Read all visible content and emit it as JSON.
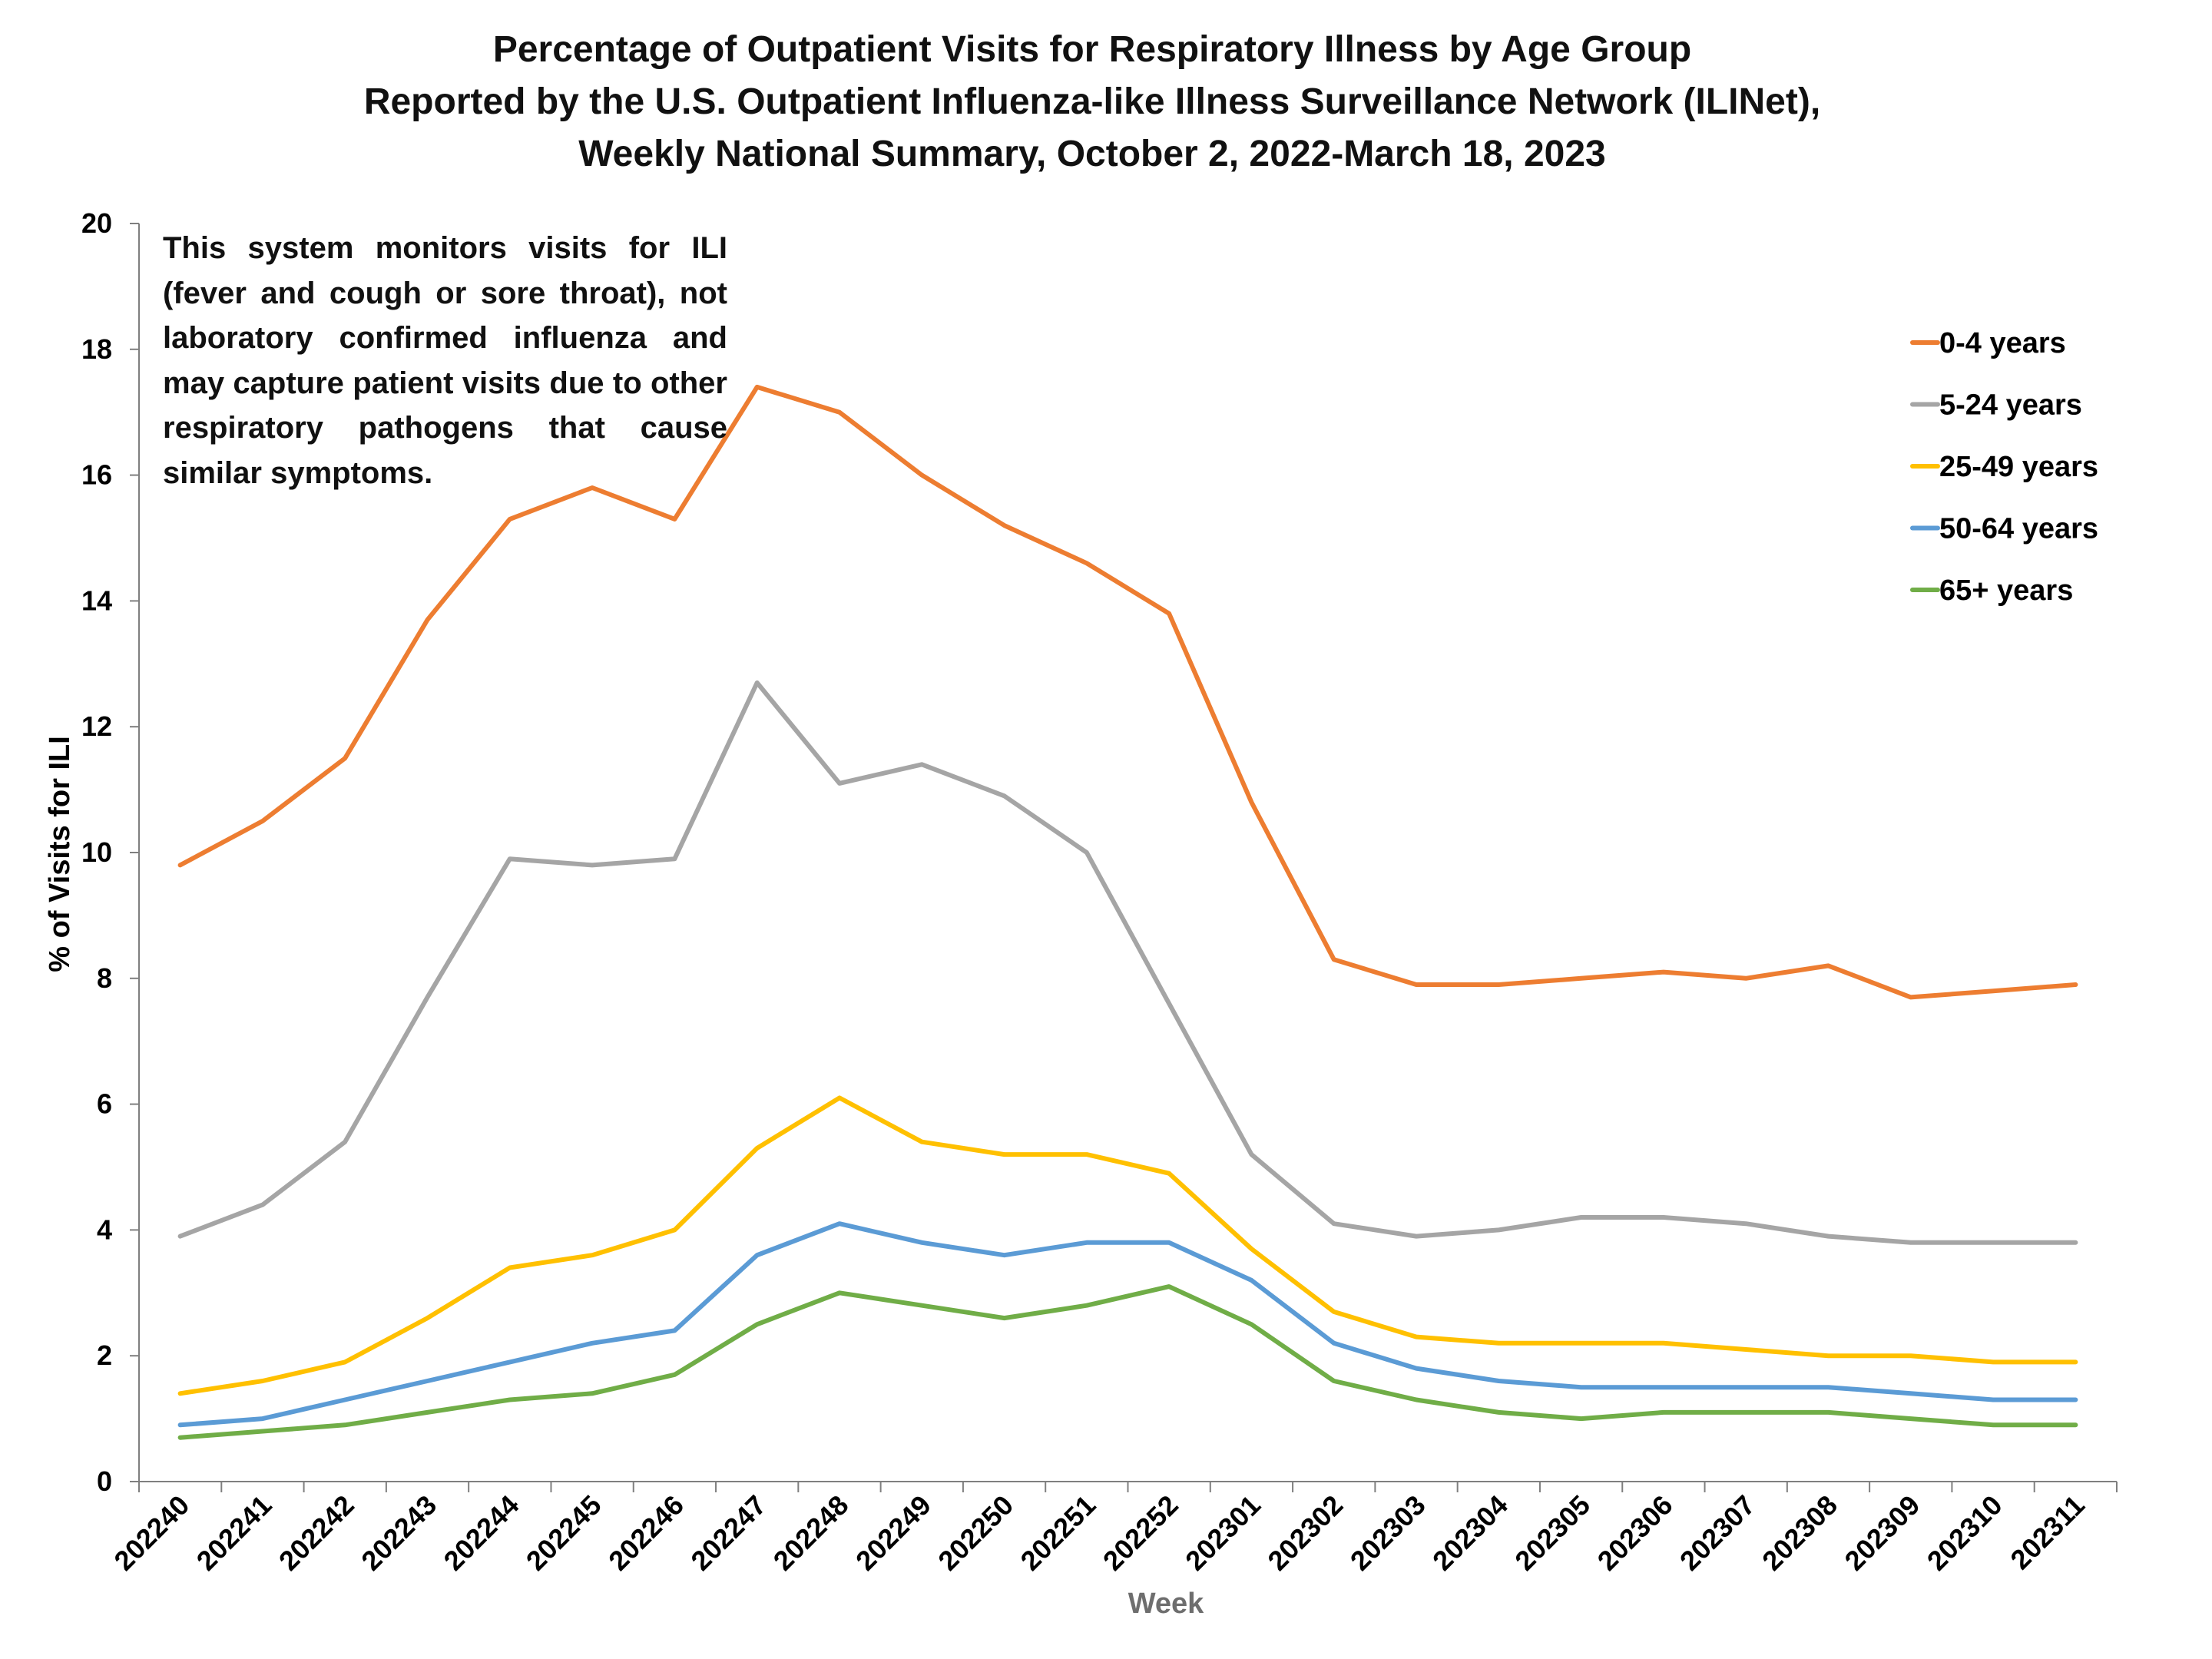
{
  "chart_data": {
    "type": "line",
    "title": [
      "Percentage of Outpatient Visits for Respiratory Illness by Age Group",
      "Reported by the U.S. Outpatient Influenza-like Illness Surveillance Network (ILINet),",
      "Weekly National Summary, October 2, 2022-March 18, 2023"
    ],
    "xlabel": "Week",
    "ylabel": "% of Visits for ILI",
    "ylim": [
      0,
      20
    ],
    "yticks": [
      0,
      2,
      4,
      6,
      8,
      10,
      12,
      14,
      16,
      18,
      20
    ],
    "categories": [
      "202240",
      "202241",
      "202242",
      "202243",
      "202244",
      "202245",
      "202246",
      "202247",
      "202248",
      "202249",
      "202250",
      "202251",
      "202252",
      "202301",
      "202302",
      "202303",
      "202304",
      "202305",
      "202306",
      "202307",
      "202308",
      "202309",
      "202310",
      "202311"
    ],
    "annotation": "This system monitors visits for ILI (fever and cough or sore throat), not laboratory confirmed influenza and may capture patient visits due to other respiratory pathogens that cause similar symptoms.",
    "legend_position": "top-right",
    "series": [
      {
        "name": "0-4 years",
        "color": "#ED7D31",
        "values": [
          9.8,
          10.5,
          11.5,
          13.7,
          15.3,
          15.8,
          15.3,
          17.4,
          17.0,
          16.0,
          15.2,
          14.6,
          13.8,
          10.8,
          8.3,
          7.9,
          7.9,
          8.0,
          8.1,
          8.0,
          8.2,
          7.7,
          7.8,
          7.9
        ]
      },
      {
        "name": "5-24 years",
        "color": "#A5A5A5",
        "values": [
          3.9,
          4.4,
          5.4,
          7.7,
          9.9,
          9.8,
          9.9,
          12.7,
          11.1,
          11.4,
          10.9,
          10.0,
          7.6,
          5.2,
          4.1,
          3.9,
          4.0,
          4.2,
          4.2,
          4.1,
          3.9,
          3.8,
          3.8,
          3.8
        ]
      },
      {
        "name": "25-49 years",
        "color": "#FFC000",
        "values": [
          1.4,
          1.6,
          1.9,
          2.6,
          3.4,
          3.6,
          4.0,
          5.3,
          6.1,
          5.4,
          5.2,
          5.2,
          4.9,
          3.7,
          2.7,
          2.3,
          2.2,
          2.2,
          2.2,
          2.1,
          2.0,
          2.0,
          1.9,
          1.9
        ]
      },
      {
        "name": "50-64 years",
        "color": "#5B9BD5",
        "values": [
          0.9,
          1.0,
          1.3,
          1.6,
          1.9,
          2.2,
          2.4,
          3.6,
          4.1,
          3.8,
          3.6,
          3.8,
          3.8,
          3.2,
          2.2,
          1.8,
          1.6,
          1.5,
          1.5,
          1.5,
          1.5,
          1.4,
          1.3,
          1.3
        ]
      },
      {
        "name": "65+ years",
        "color": "#70AD47",
        "values": [
          0.7,
          0.8,
          0.9,
          1.1,
          1.3,
          1.4,
          1.7,
          2.5,
          3.0,
          2.8,
          2.6,
          2.8,
          3.1,
          2.5,
          1.6,
          1.3,
          1.1,
          1.0,
          1.1,
          1.1,
          1.1,
          1.0,
          0.9,
          0.9
        ]
      }
    ]
  }
}
